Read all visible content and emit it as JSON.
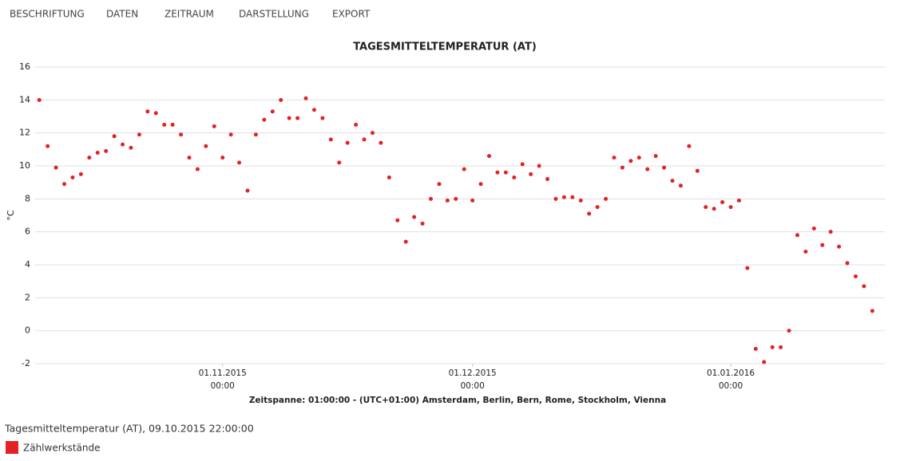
{
  "menu": [
    "BESCHRIFTUNG",
    "DATEN",
    "ZEITRAUM",
    "DARSTELLUNG",
    "EXPORT"
  ],
  "chart_data": {
    "type": "scatter",
    "title": "TAGESMITTELTEMPERATUR (AT)",
    "y_label": "°C",
    "x_label": "Zeitspanne: 01:00:00 - (UTC+01:00) Amsterdam, Berlin, Bern, Rome, Stockholm, Vienna",
    "x": [
      "2015-10-10",
      "2015-10-11",
      "2015-10-12",
      "2015-10-13",
      "2015-10-14",
      "2015-10-15",
      "2015-10-16",
      "2015-10-17",
      "2015-10-18",
      "2015-10-19",
      "2015-10-20",
      "2015-10-21",
      "2015-10-22",
      "2015-10-23",
      "2015-10-24",
      "2015-10-25",
      "2015-10-26",
      "2015-10-27",
      "2015-10-28",
      "2015-10-29",
      "2015-10-30",
      "2015-10-31",
      "2015-11-01",
      "2015-11-02",
      "2015-11-03",
      "2015-11-04",
      "2015-11-05",
      "2015-11-06",
      "2015-11-07",
      "2015-11-08",
      "2015-11-09",
      "2015-11-10",
      "2015-11-11",
      "2015-11-12",
      "2015-11-13",
      "2015-11-14",
      "2015-11-15",
      "2015-11-16",
      "2015-11-17",
      "2015-11-18",
      "2015-11-19",
      "2015-11-20",
      "2015-11-21",
      "2015-11-22",
      "2015-11-23",
      "2015-11-24",
      "2015-11-25",
      "2015-11-26",
      "2015-11-27",
      "2015-11-28",
      "2015-11-29",
      "2015-11-30",
      "2015-12-01",
      "2015-12-02",
      "2015-12-03",
      "2015-12-04",
      "2015-12-05",
      "2015-12-06",
      "2015-12-07",
      "2015-12-08",
      "2015-12-09",
      "2015-12-10",
      "2015-12-11",
      "2015-12-12",
      "2015-12-13",
      "2015-12-14",
      "2015-12-15",
      "2015-12-16",
      "2015-12-17",
      "2015-12-18",
      "2015-12-19",
      "2015-12-20",
      "2015-12-21",
      "2015-12-22",
      "2015-12-23",
      "2015-12-24",
      "2015-12-25",
      "2015-12-26",
      "2015-12-27",
      "2015-12-28",
      "2015-12-29",
      "2015-12-30",
      "2015-12-31",
      "2016-01-01",
      "2016-01-02",
      "2016-01-03",
      "2016-01-04",
      "2016-01-05",
      "2016-01-06",
      "2016-01-07",
      "2016-01-08",
      "2016-01-09",
      "2016-01-10",
      "2016-01-11",
      "2016-01-12",
      "2016-01-13",
      "2016-01-14",
      "2016-01-15",
      "2016-01-16",
      "2016-01-17",
      "2016-01-18"
    ],
    "series": [
      {
        "name": "Zählwerkstände",
        "color": "#e32222",
        "values": [
          14.0,
          11.2,
          9.9,
          8.9,
          9.3,
          9.5,
          10.5,
          10.8,
          10.9,
          11.8,
          11.3,
          11.1,
          11.9,
          13.3,
          13.2,
          12.5,
          12.5,
          11.9,
          10.5,
          9.8,
          11.2,
          12.4,
          10.5,
          11.9,
          10.2,
          8.5,
          11.9,
          12.8,
          13.3,
          14.0,
          12.9,
          12.9,
          14.1,
          13.4,
          12.9,
          11.6,
          10.2,
          11.4,
          12.5,
          11.6,
          12.0,
          11.4,
          9.3,
          6.7,
          5.4,
          6.9,
          6.5,
          8.0,
          8.9,
          7.9,
          8.0,
          9.8,
          7.9,
          8.9,
          10.6,
          9.6,
          9.6,
          9.3,
          10.1,
          9.5,
          10.0,
          9.2,
          8.0,
          8.1,
          8.1,
          7.9,
          7.1,
          7.5,
          8.0,
          10.5,
          9.9,
          10.3,
          10.5,
          9.8,
          10.6,
          9.9,
          9.1,
          8.8,
          11.2,
          9.7,
          7.5,
          7.4,
          7.8,
          7.5,
          7.9,
          3.8,
          -1.1,
          -1.9,
          -1.0,
          -1.0,
          0.0,
          5.8,
          4.8,
          6.2,
          5.2,
          6.0,
          5.1,
          4.1,
          3.3,
          2.7,
          1.2
        ]
      }
    ],
    "xlim": [
      "2015-10-09T12:00",
      "2016-01-19T12:00"
    ],
    "xticks": [
      {
        "value": "2015-11-01",
        "label": "01.11.2015 00:00"
      },
      {
        "value": "2015-12-01",
        "label": "01.12.2015 00:00"
      },
      {
        "value": "2016-01-01",
        "label": "01.01.2016 00:00"
      }
    ],
    "ylim": [
      -2,
      16
    ],
    "yticks": [
      -2,
      0,
      2,
      4,
      6,
      8,
      10,
      12,
      14,
      16
    ],
    "grid": true
  },
  "caption": "Tagesmitteltemperatur (AT), 09.10.2015 22:00:00"
}
